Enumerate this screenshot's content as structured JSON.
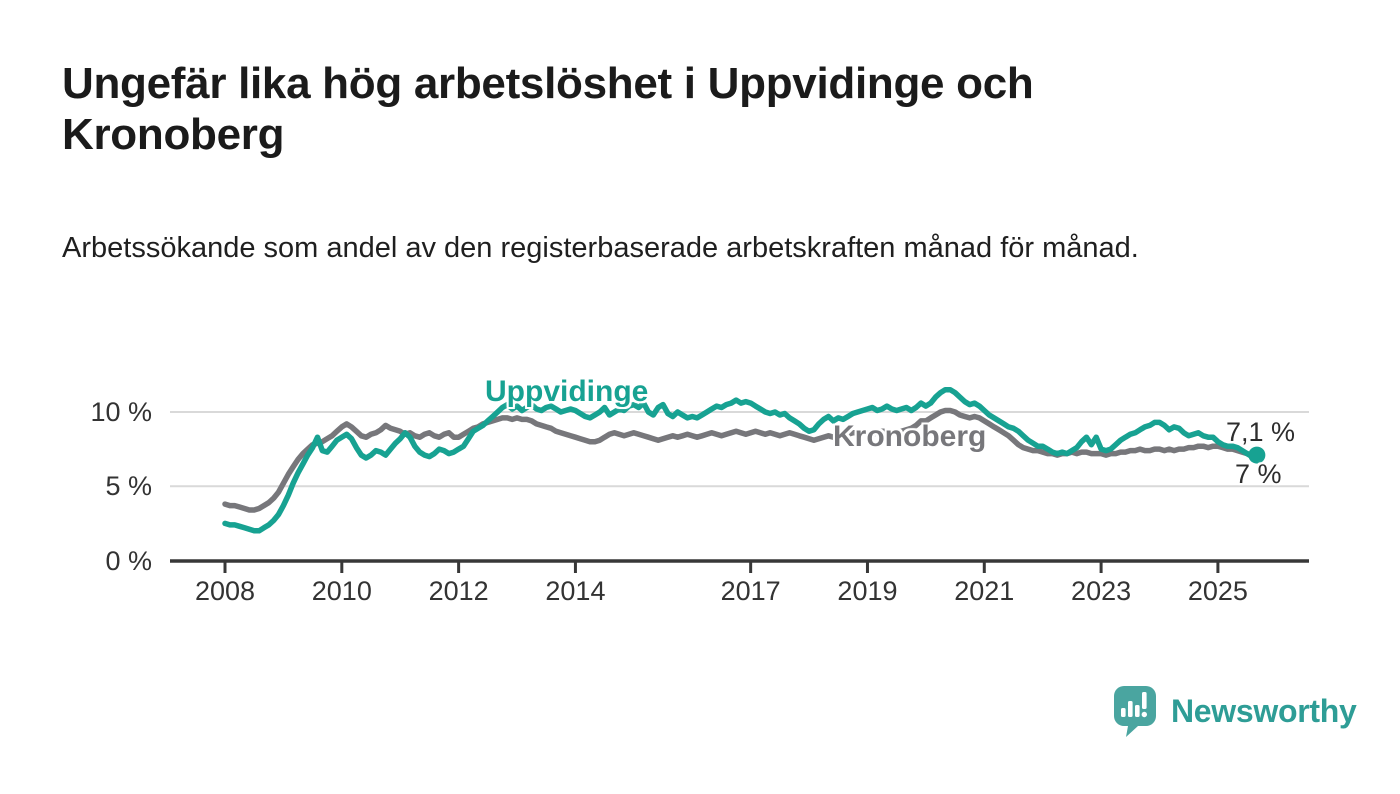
{
  "header": {
    "title": "Ungefär lika hög arbetslöshet i Uppvidinge och Kronoberg",
    "subtitle": "Arbetssökande som andel av den registerbaserade arbetskraften månad för månad."
  },
  "chart_data": {
    "type": "line",
    "title": "Ungefär lika hög arbetslöshet i Uppvidinge och Kronoberg",
    "subtitle": "Arbetssökande som andel av den registerbaserade arbetskraften månad för månad.",
    "unit": "%",
    "x": {
      "start": "2008-01",
      "end": "2025-09",
      "frequency": "monthly",
      "tick_years": [
        2008,
        2010,
        2012,
        2014,
        2017,
        2019,
        2021,
        2023,
        2025
      ],
      "tick_labels": [
        "2008",
        "2010",
        "2012",
        "2014",
        "2017",
        "2019",
        "2021",
        "2023",
        "2025"
      ]
    },
    "y": {
      "ticks": [
        {
          "value": 0,
          "label": "0 %"
        },
        {
          "value": 5,
          "label": "5 %"
        },
        {
          "value": 10,
          "label": "10 %"
        }
      ],
      "range": [
        0,
        12
      ],
      "grid": true
    },
    "legend_position": "inline-labels",
    "series": [
      {
        "name": "Uppvidinge",
        "color": "#17a292",
        "end_label": "7,1 %",
        "end_value": 7.1,
        "values": [
          2.5,
          2.4,
          2.4,
          2.3,
          2.2,
          2.1,
          2.0,
          2.0,
          2.2,
          2.4,
          2.7,
          3.1,
          3.7,
          4.4,
          5.2,
          5.9,
          6.5,
          7.1,
          7.6,
          8.3,
          7.4,
          7.3,
          7.7,
          8.1,
          8.3,
          8.5,
          8.2,
          7.6,
          7.1,
          6.9,
          7.1,
          7.4,
          7.3,
          7.1,
          7.5,
          7.9,
          8.2,
          8.6,
          8.3,
          7.7,
          7.3,
          7.1,
          7.0,
          7.2,
          7.5,
          7.4,
          7.2,
          7.3,
          7.5,
          7.7,
          8.2,
          8.7,
          8.9,
          9.1,
          9.4,
          9.7,
          10.0,
          10.3,
          10.5,
          10.2,
          10.4,
          10.1,
          10.3,
          10.5,
          10.2,
          10.1,
          10.3,
          10.4,
          10.2,
          10.0,
          10.1,
          10.2,
          10.1,
          9.9,
          9.7,
          9.6,
          9.8,
          10.0,
          10.3,
          9.8,
          10.0,
          10.2,
          10.1,
          10.4,
          10.5,
          10.3,
          10.6,
          10.0,
          9.8,
          10.3,
          10.5,
          9.9,
          9.7,
          10.0,
          9.8,
          9.6,
          9.7,
          9.6,
          9.8,
          10.0,
          10.2,
          10.4,
          10.3,
          10.5,
          10.6,
          10.8,
          10.6,
          10.7,
          10.6,
          10.4,
          10.2,
          10.0,
          9.9,
          10.0,
          9.8,
          9.9,
          9.6,
          9.4,
          9.2,
          8.9,
          8.7,
          8.8,
          9.2,
          9.5,
          9.7,
          9.4,
          9.6,
          9.5,
          9.7,
          9.9,
          10.0,
          10.1,
          10.2,
          10.3,
          10.1,
          10.2,
          10.4,
          10.2,
          10.1,
          10.2,
          10.3,
          10.1,
          10.3,
          10.6,
          10.4,
          10.6,
          11.0,
          11.3,
          11.5,
          11.5,
          11.3,
          11.0,
          10.7,
          10.5,
          10.6,
          10.4,
          10.1,
          9.8,
          9.6,
          9.4,
          9.2,
          9.0,
          8.9,
          8.7,
          8.4,
          8.1,
          7.9,
          7.7,
          7.7,
          7.5,
          7.3,
          7.2,
          7.3,
          7.2,
          7.4,
          7.6,
          8.0,
          8.3,
          7.8,
          8.3,
          7.5,
          7.4,
          7.5,
          7.8,
          8.1,
          8.3,
          8.5,
          8.6,
          8.8,
          9.0,
          9.1,
          9.3,
          9.3,
          9.1,
          8.8,
          9.0,
          8.9,
          8.6,
          8.4,
          8.5,
          8.6,
          8.4,
          8.3,
          8.3,
          8.0,
          7.8,
          7.7,
          7.7,
          7.6,
          7.4,
          7.2,
          7.0,
          7.1
        ]
      },
      {
        "name": "Kronoberg",
        "color": "#77777b",
        "end_label": "7 %",
        "end_value": 7.0,
        "values": [
          3.8,
          3.7,
          3.7,
          3.6,
          3.5,
          3.4,
          3.4,
          3.5,
          3.7,
          3.9,
          4.2,
          4.6,
          5.2,
          5.8,
          6.3,
          6.8,
          7.2,
          7.5,
          7.8,
          7.9,
          8.0,
          8.2,
          8.4,
          8.7,
          9.0,
          9.2,
          9.0,
          8.7,
          8.4,
          8.3,
          8.5,
          8.6,
          8.8,
          9.1,
          8.9,
          8.8,
          8.7,
          8.5,
          8.6,
          8.4,
          8.3,
          8.5,
          8.6,
          8.4,
          8.3,
          8.5,
          8.6,
          8.3,
          8.3,
          8.5,
          8.7,
          8.9,
          9.0,
          9.2,
          9.3,
          9.4,
          9.5,
          9.6,
          9.6,
          9.5,
          9.6,
          9.5,
          9.5,
          9.4,
          9.2,
          9.1,
          9.0,
          8.9,
          8.7,
          8.6,
          8.5,
          8.4,
          8.3,
          8.2,
          8.1,
          8.0,
          8.0,
          8.1,
          8.3,
          8.5,
          8.6,
          8.5,
          8.4,
          8.5,
          8.6,
          8.5,
          8.4,
          8.3,
          8.2,
          8.1,
          8.2,
          8.3,
          8.4,
          8.3,
          8.4,
          8.5,
          8.4,
          8.3,
          8.4,
          8.5,
          8.6,
          8.5,
          8.4,
          8.5,
          8.6,
          8.7,
          8.6,
          8.5,
          8.6,
          8.7,
          8.6,
          8.5,
          8.6,
          8.5,
          8.4,
          8.5,
          8.6,
          8.5,
          8.4,
          8.3,
          8.2,
          8.1,
          8.2,
          8.3,
          8.4,
          8.3,
          8.5,
          8.6,
          8.5,
          8.6,
          8.6,
          8.6,
          8.6,
          8.5,
          8.6,
          8.7,
          8.7,
          8.6,
          8.6,
          8.7,
          8.8,
          8.9,
          9.1,
          9.4,
          9.4,
          9.6,
          9.8,
          10.0,
          10.1,
          10.1,
          10.0,
          9.8,
          9.7,
          9.6,
          9.7,
          9.6,
          9.4,
          9.2,
          9.0,
          8.8,
          8.6,
          8.4,
          8.1,
          7.8,
          7.6,
          7.5,
          7.4,
          7.4,
          7.3,
          7.2,
          7.2,
          7.1,
          7.2,
          7.2,
          7.3,
          7.2,
          7.3,
          7.3,
          7.2,
          7.2,
          7.2,
          7.1,
          7.2,
          7.2,
          7.3,
          7.3,
          7.4,
          7.4,
          7.5,
          7.4,
          7.4,
          7.5,
          7.5,
          7.4,
          7.5,
          7.4,
          7.5,
          7.5,
          7.6,
          7.6,
          7.7,
          7.7,
          7.6,
          7.7,
          7.7,
          7.6,
          7.5,
          7.5,
          7.4,
          7.3,
          7.2,
          7.1,
          7.0
        ]
      }
    ],
    "colors": {
      "grid": "#d9d9d9",
      "axis": "#383838",
      "tick_text": "#333333",
      "end_label_text": "#2d2d2d"
    }
  },
  "footer": {
    "brand": "Newsworthy",
    "brand_text_color": "#2e9d96",
    "brand_icon_color": "#4aa5a0"
  }
}
